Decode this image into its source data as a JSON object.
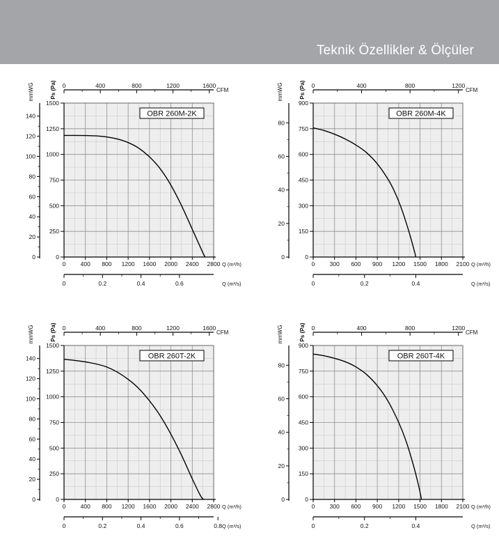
{
  "header": {
    "title": "Teknik Özellikler & Ölçüler"
  },
  "chart_data": [
    {
      "type": "line",
      "title": "OBR 260M-2K",
      "left_axis_label": "mmWG",
      "left_ticks": [
        0,
        20,
        40,
        60,
        80,
        100,
        120,
        140
      ],
      "y_label": "Ps (Pa)",
      "y_ticks": [
        0,
        250,
        500,
        750,
        1000,
        1250,
        1500
      ],
      "ylim": [
        0,
        1500
      ],
      "top_axis_label": "CFM",
      "top_ticks": [
        0,
        400,
        800,
        1200,
        1600
      ],
      "x_label": "Q (m³/h)",
      "x_ticks": [
        0,
        400,
        800,
        1200,
        1600,
        2000,
        2400,
        2800
      ],
      "xlim": [
        0,
        2800
      ],
      "bottom_axis_label": "Q (m³/s)",
      "bottom_ticks": [
        0,
        0.2,
        0.4,
        0.6
      ],
      "series": [
        {
          "x": [
            0,
            200,
            400,
            600,
            800,
            1000,
            1200,
            1400,
            1600,
            1800,
            2000,
            2200,
            2400,
            2600,
            2640
          ],
          "y": [
            1185,
            1185,
            1184,
            1180,
            1170,
            1150,
            1115,
            1060,
            975,
            860,
            700,
            500,
            270,
            40,
            0
          ]
        }
      ]
    },
    {
      "type": "line",
      "title": "OBR 260M-4K",
      "left_axis_label": "mmWG",
      "left_ticks": [
        0,
        20,
        40,
        60,
        80
      ],
      "y_label": "Ps (Pa)",
      "y_ticks": [
        0,
        150,
        300,
        450,
        600,
        750,
        900
      ],
      "ylim": [
        0,
        900
      ],
      "top_axis_label": "CFM",
      "top_ticks": [
        0,
        400,
        800,
        1200
      ],
      "x_label": "Q (m³/h)",
      "x_ticks": [
        0,
        300,
        600,
        900,
        1200,
        1500,
        1800,
        2100
      ],
      "xlim": [
        0,
        2100
      ],
      "bottom_axis_label": "Q (m³/s)",
      "bottom_ticks": [
        0,
        0.2,
        0.4
      ],
      "series": [
        {
          "x": [
            0,
            150,
            300,
            450,
            600,
            750,
            900,
            1050,
            1150,
            1250,
            1350,
            1420,
            1440
          ],
          "y": [
            755,
            740,
            718,
            690,
            655,
            610,
            545,
            455,
            375,
            270,
            140,
            35,
            0
          ]
        }
      ]
    },
    {
      "type": "line",
      "title": "OBR 260T-2K",
      "left_axis_label": "mmWG",
      "left_ticks": [
        0,
        20,
        40,
        60,
        80,
        100,
        120,
        140
      ],
      "y_label": "Ps (Pa)",
      "y_ticks": [
        0,
        250,
        500,
        750,
        1000,
        1250,
        1500
      ],
      "ylim": [
        0,
        1500
      ],
      "top_axis_label": "CFM",
      "top_ticks": [
        0,
        400,
        800,
        1200,
        1600
      ],
      "x_label": "Q (m³/h)",
      "x_ticks": [
        0,
        400,
        800,
        1200,
        1600,
        2000,
        2400,
        2800
      ],
      "xlim": [
        0,
        2800
      ],
      "bottom_axis_label": "Q (m³/s)",
      "bottom_ticks": [
        0,
        0.2,
        0.4,
        0.6,
        0.8
      ],
      "series": [
        {
          "x": [
            0,
            200,
            400,
            600,
            800,
            1000,
            1200,
            1400,
            1600,
            1800,
            2000,
            2200,
            2400,
            2550,
            2610
          ],
          "y": [
            1365,
            1355,
            1340,
            1320,
            1290,
            1240,
            1170,
            1080,
            960,
            815,
            635,
            430,
            200,
            40,
            0
          ]
        }
      ]
    },
    {
      "type": "line",
      "title": "OBR 260T-4K",
      "left_axis_label": "mmWG",
      "left_ticks": [
        0,
        20,
        40,
        60,
        80
      ],
      "y_label": "Ps (Pa)",
      "y_ticks": [
        0,
        150,
        300,
        450,
        600,
        750,
        900
      ],
      "ylim": [
        0,
        900
      ],
      "top_axis_label": "CFM",
      "top_ticks": [
        0,
        400,
        800,
        1200
      ],
      "x_label": "Q (m³/h)",
      "x_ticks": [
        0,
        300,
        600,
        900,
        1200,
        1500,
        1800,
        2100
      ],
      "xlim": [
        0,
        2100
      ],
      "bottom_axis_label": "Q (m³/s)",
      "bottom_ticks": [
        0,
        0.2,
        0.4
      ],
      "series": [
        {
          "x": [
            0,
            150,
            300,
            450,
            600,
            750,
            900,
            1050,
            1200,
            1300,
            1400,
            1480,
            1520
          ],
          "y": [
            850,
            840,
            825,
            805,
            775,
            730,
            665,
            575,
            450,
            345,
            210,
            80,
            0
          ]
        }
      ]
    }
  ]
}
